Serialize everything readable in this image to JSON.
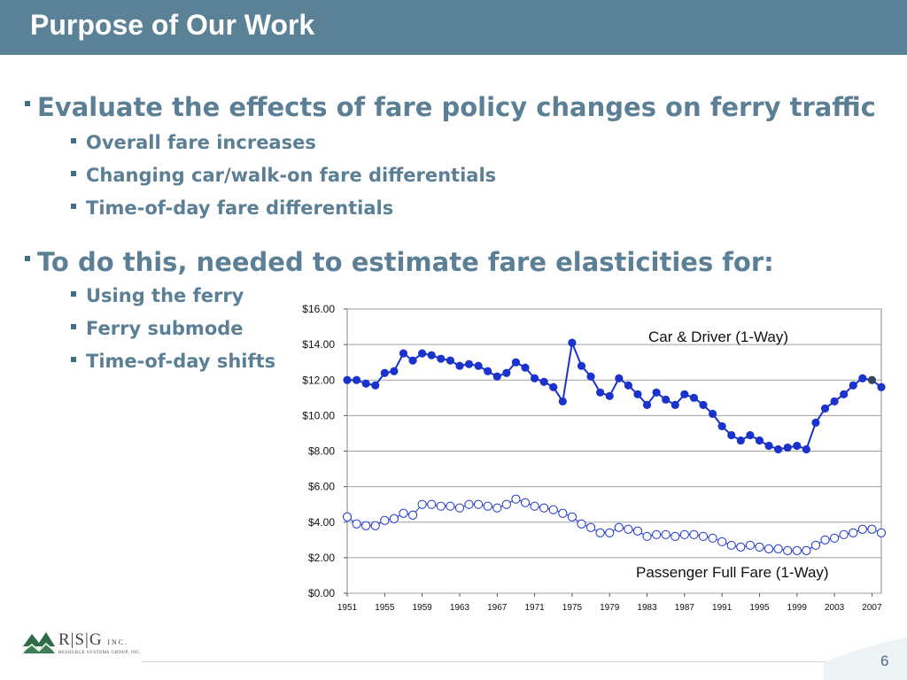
{
  "title": "Purpose of Our Work",
  "bullets": [
    {
      "text": "Evaluate the effects of fare policy changes on ferry traffic",
      "sub": [
        "Overall fare increases",
        "Changing car/walk-on fare differentials",
        "Time-of-day fare  differentials"
      ]
    },
    {
      "text": "To do this, needed to estimate fare elasticities for:",
      "sub": [
        "Using the ferry",
        "Ferry submode",
        "Time-of-day shifts"
      ]
    }
  ],
  "chart_data": {
    "type": "line",
    "x_tick_labels": [
      "1951",
      "1955",
      "1959",
      "1963",
      "1967",
      "1971",
      "1975",
      "1979",
      "1983",
      "1987",
      "1991",
      "1995",
      "1999",
      "2003",
      "2007"
    ],
    "y_tick_labels": [
      "$0.00",
      "$2.00",
      "$4.00",
      "$6.00",
      "$8.00",
      "$10.00",
      "$12.00",
      "$14.00",
      "$16.00"
    ],
    "ylim": [
      0,
      16
    ],
    "xlim": [
      1951,
      2008
    ],
    "grid": true,
    "colors": {
      "car": "#1a33cc",
      "car_last": "#334466",
      "passenger": "#1a33cc",
      "grid": "#a0a0a0"
    },
    "series": [
      {
        "name": "Car & Driver (1-Way)",
        "x": [
          1951,
          1952,
          1953,
          1954,
          1955,
          1956,
          1957,
          1958,
          1959,
          1960,
          1961,
          1962,
          1963,
          1964,
          1965,
          1966,
          1967,
          1968,
          1969,
          1970,
          1971,
          1972,
          1973,
          1974,
          1975,
          1976,
          1977,
          1978,
          1979,
          1980,
          1981,
          1982,
          1983,
          1984,
          1985,
          1986,
          1987,
          1988,
          1989,
          1990,
          1991,
          1992,
          1993,
          1994,
          1995,
          1996,
          1997,
          1998,
          1999,
          2000,
          2001,
          2002,
          2003,
          2004,
          2005,
          2006,
          2007,
          2008
        ],
        "values": [
          12.0,
          12.0,
          11.8,
          11.7,
          12.4,
          12.5,
          13.5,
          13.1,
          13.5,
          13.4,
          13.2,
          13.1,
          12.8,
          12.9,
          12.8,
          12.5,
          12.2,
          12.4,
          13.0,
          12.7,
          12.1,
          11.9,
          11.6,
          10.8,
          14.1,
          12.8,
          12.2,
          11.3,
          11.1,
          12.1,
          11.7,
          11.2,
          10.6,
          11.3,
          10.9,
          10.6,
          11.2,
          11.0,
          10.6,
          10.1,
          9.4,
          8.9,
          8.6,
          8.9,
          8.6,
          8.3,
          8.1,
          8.2,
          8.3,
          8.1,
          9.6,
          10.4,
          10.8,
          11.2,
          11.7,
          12.1,
          12.0,
          11.6
        ]
      },
      {
        "name": "Passenger Full Fare (1-Way)",
        "x": [
          1951,
          1952,
          1953,
          1954,
          1955,
          1956,
          1957,
          1958,
          1959,
          1960,
          1961,
          1962,
          1963,
          1964,
          1965,
          1966,
          1967,
          1968,
          1969,
          1970,
          1971,
          1972,
          1973,
          1974,
          1975,
          1976,
          1977,
          1978,
          1979,
          1980,
          1981,
          1982,
          1983,
          1984,
          1985,
          1986,
          1987,
          1988,
          1989,
          1990,
          1991,
          1992,
          1993,
          1994,
          1995,
          1996,
          1997,
          1998,
          1999,
          2000,
          2001,
          2002,
          2003,
          2004,
          2005,
          2006,
          2007,
          2008
        ],
        "values": [
          4.3,
          3.9,
          3.8,
          3.8,
          4.1,
          4.2,
          4.5,
          4.4,
          5.0,
          5.0,
          4.9,
          4.9,
          4.8,
          5.0,
          5.0,
          4.9,
          4.8,
          5.0,
          5.3,
          5.1,
          4.9,
          4.8,
          4.7,
          4.5,
          4.3,
          3.9,
          3.7,
          3.4,
          3.4,
          3.7,
          3.6,
          3.5,
          3.2,
          3.3,
          3.3,
          3.2,
          3.3,
          3.3,
          3.2,
          3.1,
          2.9,
          2.7,
          2.6,
          2.7,
          2.6,
          2.5,
          2.5,
          2.4,
          2.4,
          2.4,
          2.7,
          3.0,
          3.1,
          3.3,
          3.4,
          3.6,
          3.6,
          3.4
        ]
      }
    ]
  },
  "logo": {
    "letters": "R|S|G",
    "inc": "INC.",
    "subtitle": "RESOURCE SYSTEMS GROUP, INC."
  },
  "page_number": "6"
}
